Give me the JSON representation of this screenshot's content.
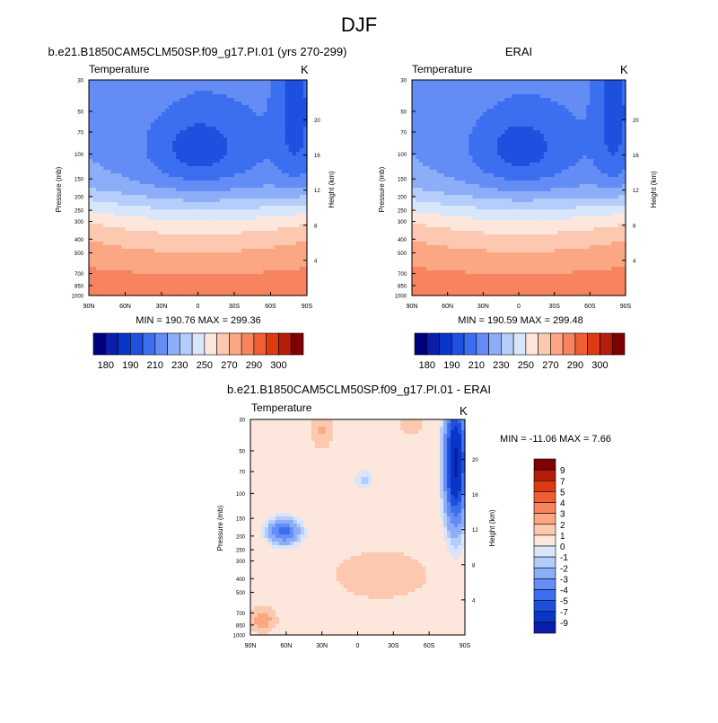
{
  "figure_title": "DJF",
  "colors": {
    "abs_palette": [
      "#00007f",
      "#0a1ea8",
      "#0a36c8",
      "#1e50e0",
      "#3c6ef0",
      "#648cf5",
      "#8cadf7",
      "#b4cdfa",
      "#d8e6fb",
      "#fde6dc",
      "#fcc8b0",
      "#fba784",
      "#f7845e",
      "#ee5f34",
      "#dd3a12",
      "#b51d0a",
      "#7f0000"
    ],
    "diff_palette": [
      "#00007f",
      "#0a1ea8",
      "#0a36c8",
      "#1e50e0",
      "#3c6ef0",
      "#648cf5",
      "#8cadf7",
      "#b4cdfa",
      "#d8e6fb",
      "#fde6dc",
      "#fcc8b0",
      "#fba784",
      "#f7845e",
      "#ee5f34",
      "#dd3a12",
      "#b51d0a",
      "#7f0000"
    ]
  },
  "chart_data": [
    {
      "type": "heatmap",
      "title": "b.e21.B1850CAM5CLM50SP.f09_g17.PI.01 (yrs 270-299)",
      "left_label": "Temperature",
      "right_label": "K",
      "xlabel": "",
      "ylabel": "Pressure (mb)",
      "y2label": "Height (km)",
      "x_ticks": [
        "90N",
        "60N",
        "30N",
        "0",
        "30S",
        "60S",
        "90S"
      ],
      "y_ticks": [
        "30",
        "50",
        "70",
        "100",
        "150",
        "200",
        "250",
        "300",
        "400",
        "500",
        "700",
        "850",
        "1000"
      ],
      "y2_ticks": [
        "20",
        "16",
        "12",
        "8",
        "4"
      ],
      "min_max_text": "MIN = 190.76   MAX = 299.36",
      "colorbar_labels": [
        "180",
        "190",
        "210",
        "230",
        "250",
        "270",
        "290",
        "300"
      ],
      "scale": "log-pressure",
      "min": 190.76,
      "max": 299.36
    },
    {
      "type": "heatmap",
      "title": "ERAI",
      "left_label": "Temperature",
      "right_label": "K",
      "xlabel": "",
      "ylabel": "Pressure (mb)",
      "y2label": "Height (km)",
      "x_ticks": [
        "90N",
        "60N",
        "30N",
        "0",
        "30S",
        "60S",
        "90S"
      ],
      "y_ticks": [
        "30",
        "50",
        "70",
        "100",
        "150",
        "200",
        "250",
        "300",
        "400",
        "500",
        "700",
        "850",
        "1000"
      ],
      "y2_ticks": [
        "20",
        "16",
        "12",
        "8",
        "4"
      ],
      "min_max_text": "MIN = 190.59   MAX = 299.48",
      "colorbar_labels": [
        "180",
        "190",
        "210",
        "230",
        "250",
        "270",
        "290",
        "300"
      ],
      "scale": "log-pressure",
      "min": 190.59,
      "max": 299.48
    },
    {
      "type": "heatmap",
      "title": "b.e21.B1850CAM5CLM50SP.f09_g17.PI.01 - ERAI",
      "left_label": "Temperature",
      "right_label": "K",
      "xlabel": "",
      "ylabel": "Pressure (mb)",
      "y2label": "Height (km)",
      "x_ticks": [
        "90N",
        "60N",
        "30N",
        "0",
        "30S",
        "60S",
        "90S"
      ],
      "y_ticks": [
        "30",
        "50",
        "70",
        "100",
        "150",
        "200",
        "250",
        "300",
        "400",
        "500",
        "700",
        "850",
        "1000"
      ],
      "y2_ticks": [
        "20",
        "16",
        "12",
        "8",
        "4"
      ],
      "min_max_text": "MIN = -11.06   MAX =   7.66",
      "colorbar_labels": [
        "9",
        "7",
        "5",
        "4",
        "3",
        "2",
        "1",
        "0",
        "-1",
        "-2",
        "-3",
        "-4",
        "-5",
        "-7",
        "-9"
      ],
      "scale": "log-pressure",
      "min": -11.06,
      "max": 7.66
    }
  ]
}
